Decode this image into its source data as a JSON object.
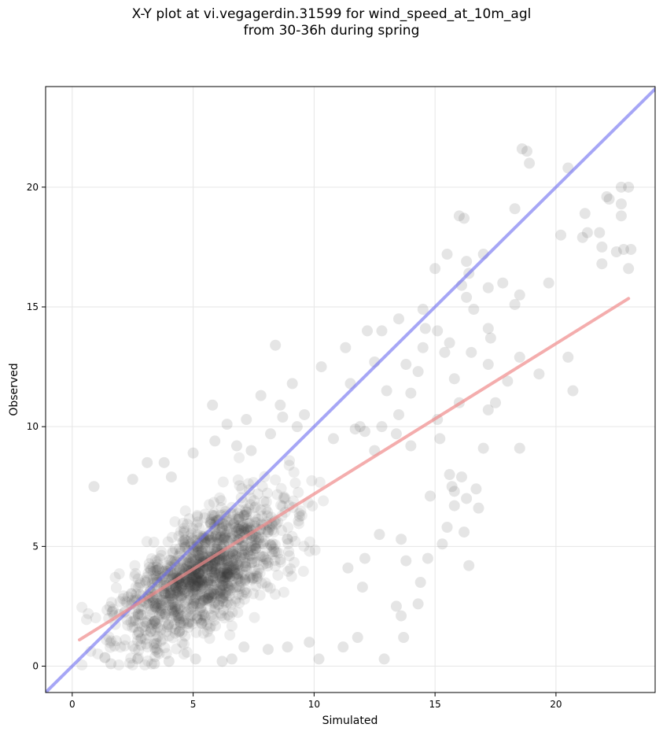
{
  "chart_data": {
    "type": "scatter",
    "title_lines": [
      "X-Y plot at vi.vegagerdin.31599 for wind_speed_at_10m_agl",
      "from 30-36h during spring"
    ],
    "xlabel": "Simulated",
    "ylabel": "Observed",
    "xlim": [
      -1.1,
      24.1
    ],
    "ylim": [
      -1.1,
      24.2
    ],
    "xticks": [
      0,
      5,
      10,
      15,
      20
    ],
    "yticks": [
      0,
      5,
      10,
      15,
      20
    ],
    "grid": true,
    "point_color": "#333333",
    "identity_line": {
      "color": "#6b6bf0",
      "points": [
        [
          -1.1,
          -1.1
        ],
        [
          24.1,
          24.1
        ]
      ]
    },
    "regression_line": {
      "color": "#f08a8a",
      "points": [
        [
          0.3,
          1.1
        ],
        [
          23.0,
          15.35
        ]
      ]
    },
    "points": [
      [
        18.6,
        21.6
      ],
      [
        18.8,
        21.5
      ],
      [
        18.9,
        21.0
      ],
      [
        20.5,
        20.8
      ],
      [
        22.7,
        20.0
      ],
      [
        23.0,
        20.0
      ],
      [
        22.1,
        19.6
      ],
      [
        22.2,
        19.5
      ],
      [
        22.7,
        19.3
      ],
      [
        18.3,
        19.1
      ],
      [
        21.2,
        18.9
      ],
      [
        22.7,
        18.8
      ],
      [
        16.0,
        18.8
      ],
      [
        16.2,
        18.7
      ],
      [
        21.3,
        18.1
      ],
      [
        21.8,
        18.1
      ],
      [
        21.1,
        17.9
      ],
      [
        20.2,
        18.0
      ],
      [
        22.5,
        17.3
      ],
      [
        22.8,
        17.4
      ],
      [
        23.1,
        17.4
      ],
      [
        21.9,
        17.5
      ],
      [
        17.0,
        17.2
      ],
      [
        15.5,
        17.2
      ],
      [
        16.3,
        16.9
      ],
      [
        21.9,
        16.8
      ],
      [
        23.0,
        16.6
      ],
      [
        15.0,
        16.6
      ],
      [
        16.4,
        16.4
      ],
      [
        19.7,
        16.0
      ],
      [
        17.8,
        16.0
      ],
      [
        16.1,
        15.9
      ],
      [
        17.2,
        15.8
      ],
      [
        18.5,
        15.5
      ],
      [
        16.3,
        15.4
      ],
      [
        18.3,
        15.1
      ],
      [
        16.6,
        14.9
      ],
      [
        14.5,
        14.9
      ],
      [
        17.2,
        14.1
      ],
      [
        14.6,
        14.1
      ],
      [
        15.1,
        14.0
      ],
      [
        12.2,
        14.0
      ],
      [
        12.8,
        14.0
      ],
      [
        13.5,
        14.5
      ],
      [
        17.3,
        13.7
      ],
      [
        15.6,
        13.5
      ],
      [
        14.5,
        13.3
      ],
      [
        11.3,
        13.3
      ],
      [
        15.4,
        13.1
      ],
      [
        16.5,
        13.1
      ],
      [
        13.8,
        12.6
      ],
      [
        12.5,
        12.7
      ],
      [
        18.5,
        12.9
      ],
      [
        20.5,
        12.9
      ],
      [
        17.2,
        12.6
      ],
      [
        14.3,
        12.3
      ],
      [
        19.3,
        12.2
      ],
      [
        11.5,
        11.8
      ],
      [
        10.3,
        12.5
      ],
      [
        15.8,
        12.0
      ],
      [
        13.0,
        11.5
      ],
      [
        14.0,
        11.4
      ],
      [
        17.5,
        11.0
      ],
      [
        17.2,
        10.7
      ],
      [
        18.0,
        11.9
      ],
      [
        20.7,
        11.5
      ],
      [
        16.0,
        11.0
      ],
      [
        15.1,
        10.3
      ],
      [
        13.5,
        10.5
      ],
      [
        12.8,
        10.0
      ],
      [
        8.4,
        13.4
      ],
      [
        9.1,
        11.8
      ],
      [
        7.8,
        11.3
      ],
      [
        8.6,
        10.9
      ],
      [
        5.8,
        10.9
      ],
      [
        9.6,
        10.5
      ],
      [
        9.3,
        10.0
      ],
      [
        8.7,
        10.4
      ],
      [
        6.4,
        10.1
      ],
      [
        7.2,
        10.3
      ],
      [
        11.9,
        10.0
      ],
      [
        12.1,
        9.8
      ],
      [
        13.4,
        9.7
      ],
      [
        15.2,
        9.5
      ],
      [
        14.0,
        9.2
      ],
      [
        17.0,
        9.1
      ],
      [
        18.5,
        9.1
      ],
      [
        12.5,
        9.0
      ],
      [
        10.8,
        9.5
      ],
      [
        11.7,
        9.9
      ],
      [
        2.5,
        7.8
      ],
      [
        0.9,
        7.5
      ],
      [
        3.1,
        8.5
      ],
      [
        3.8,
        8.5
      ],
      [
        4.1,
        7.9
      ],
      [
        5.0,
        8.9
      ],
      [
        5.9,
        9.4
      ],
      [
        6.8,
        9.2
      ],
      [
        7.4,
        9.0
      ],
      [
        8.2,
        9.7
      ],
      [
        15.8,
        7.3
      ],
      [
        16.3,
        7.0
      ],
      [
        16.1,
        7.9
      ],
      [
        15.6,
        8.0
      ],
      [
        15.8,
        6.7
      ],
      [
        16.8,
        6.6
      ],
      [
        16.2,
        5.6
      ],
      [
        14.8,
        7.1
      ],
      [
        15.7,
        7.5
      ],
      [
        16.7,
        7.4
      ],
      [
        15.3,
        5.1
      ],
      [
        15.5,
        5.8
      ],
      [
        14.7,
        4.5
      ],
      [
        14.4,
        3.5
      ],
      [
        13.8,
        4.4
      ],
      [
        13.6,
        5.3
      ],
      [
        12.7,
        5.5
      ],
      [
        12.1,
        4.5
      ],
      [
        12.0,
        3.3
      ],
      [
        11.4,
        4.1
      ],
      [
        16.4,
        4.2
      ],
      [
        14.3,
        2.6
      ],
      [
        13.4,
        2.5
      ],
      [
        13.6,
        2.1
      ],
      [
        13.7,
        1.2
      ],
      [
        12.9,
        0.3
      ],
      [
        11.8,
        1.2
      ],
      [
        11.2,
        0.8
      ],
      [
        10.2,
        0.3
      ],
      [
        9.8,
        1.0
      ],
      [
        8.9,
        0.8
      ],
      [
        8.1,
        0.7
      ],
      [
        7.1,
        0.8
      ],
      [
        6.6,
        0.3
      ],
      [
        6.2,
        0.2
      ],
      [
        5.1,
        0.3
      ],
      [
        4.0,
        0.2
      ],
      [
        3.4,
        0.1
      ],
      [
        2.7,
        0.3
      ],
      [
        1.6,
        0.1
      ]
    ]
  }
}
